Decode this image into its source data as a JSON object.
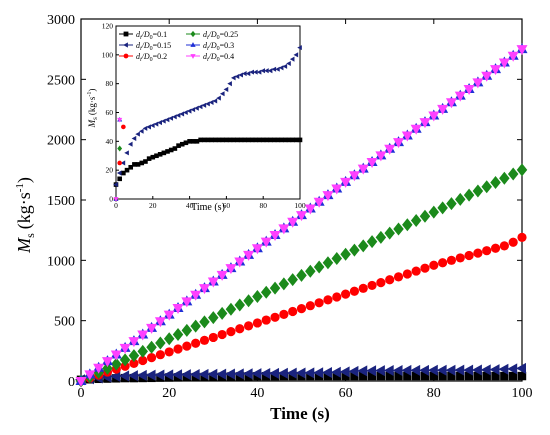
{
  "chart_data": [
    {
      "id": "main",
      "type": "scatter",
      "xlabel": "Time (s)",
      "ylabel": "M",
      "ylabel_sub": "s",
      "ylabel_unit": "(kg·s",
      "ylabel_unit_sup": "-1",
      "ylabel_unit_close": ")",
      "xlim": [
        0,
        100
      ],
      "ylim": [
        0,
        3000
      ],
      "xticks": [
        "0",
        "20",
        "40",
        "60",
        "80",
        "100"
      ],
      "yticks": [
        "0",
        "500",
        "1000",
        "1500",
        "2000",
        "2500",
        "3000"
      ],
      "grid": false,
      "x": [
        0,
        2,
        4,
        6,
        8,
        10,
        12,
        14,
        16,
        18,
        20,
        22,
        24,
        26,
        28,
        30,
        32,
        34,
        36,
        38,
        40,
        42,
        44,
        46,
        48,
        50,
        52,
        54,
        56,
        58,
        60,
        62,
        64,
        66,
        68,
        70,
        72,
        74,
        76,
        78,
        80,
        82,
        84,
        86,
        88,
        90,
        92,
        94,
        96,
        98,
        100
      ],
      "series": [
        {
          "name": "d_i/D_0=0.1",
          "color": "#000000",
          "marker": "square",
          "values": [
            10,
            14,
            18,
            20,
            22,
            24,
            24,
            25,
            26,
            28,
            29,
            30,
            31,
            32,
            33,
            34,
            35,
            37,
            38,
            39,
            40,
            40,
            40,
            41,
            41,
            41,
            41,
            41,
            41,
            41,
            41,
            41,
            41,
            41,
            41,
            41,
            41,
            41,
            41,
            41,
            41,
            41,
            41,
            41,
            41,
            41,
            41,
            41,
            41,
            41,
            41
          ]
        },
        {
          "name": "d_i/D_0=0.15",
          "color": "#1a237e",
          "marker": "triangle-left",
          "values": [
            10,
            18,
            25,
            32,
            38,
            42,
            45,
            47,
            49,
            50,
            51,
            52,
            53,
            54,
            55,
            56,
            57,
            58,
            59,
            60,
            61,
            62,
            63,
            64,
            65,
            66,
            67,
            68,
            70,
            73,
            76,
            80,
            84,
            85,
            86,
            87,
            87,
            88,
            88,
            88,
            89,
            89,
            89,
            90,
            90,
            91,
            92,
            94,
            97,
            100,
            105
          ]
        },
        {
          "name": "d_i/D_0=0.2",
          "color": "#ff0000",
          "marker": "circle",
          "values": [
            0,
            25,
            50,
            74,
            98,
            122,
            146,
            170,
            194,
            218,
            241,
            265,
            289,
            313,
            337,
            361,
            385,
            409,
            433,
            457,
            481,
            505,
            528,
            552,
            576,
            600,
            624,
            648,
            672,
            696,
            720,
            744,
            768,
            792,
            815,
            839,
            863,
            887,
            911,
            935,
            959,
            980,
            1000,
            1020,
            1040,
            1060,
            1080,
            1100,
            1120,
            1150,
            1190
          ]
        },
        {
          "name": "d_i/D_0=0.25",
          "color": "#1b8a1b",
          "marker": "diamond",
          "values": [
            0,
            35,
            70,
            105,
            140,
            175,
            210,
            245,
            280,
            315,
            350,
            385,
            420,
            455,
            490,
            525,
            560,
            595,
            630,
            665,
            700,
            735,
            770,
            805,
            840,
            875,
            910,
            945,
            980,
            1015,
            1050,
            1085,
            1120,
            1155,
            1190,
            1225,
            1260,
            1295,
            1330,
            1365,
            1400,
            1435,
            1470,
            1505,
            1540,
            1575,
            1610,
            1645,
            1680,
            1715,
            1750
          ]
        },
        {
          "name": "d_i/D_0=0.3",
          "color": "#1f2fd6",
          "marker": "triangle-up",
          "values": [
            0,
            55,
            110,
            165,
            220,
            275,
            330,
            385,
            440,
            495,
            550,
            605,
            660,
            715,
            770,
            825,
            880,
            935,
            990,
            1045,
            1100,
            1155,
            1210,
            1265,
            1320,
            1375,
            1430,
            1485,
            1540,
            1595,
            1650,
            1705,
            1760,
            1815,
            1870,
            1925,
            1980,
            2035,
            2090,
            2145,
            2200,
            2255,
            2310,
            2365,
            2420,
            2475,
            2530,
            2585,
            2640,
            2695,
            2750
          ]
        },
        {
          "name": "d_i/D_0=0.4",
          "color": "#ff40ff",
          "marker": "triangle-down",
          "values": [
            0,
            55,
            110,
            165,
            220,
            275,
            330,
            385,
            440,
            495,
            550,
            605,
            660,
            715,
            770,
            825,
            880,
            935,
            990,
            1045,
            1100,
            1155,
            1210,
            1265,
            1320,
            1375,
            1430,
            1485,
            1540,
            1595,
            1650,
            1705,
            1760,
            1815,
            1870,
            1925,
            1980,
            2035,
            2090,
            2145,
            2200,
            2255,
            2310,
            2365,
            2420,
            2475,
            2530,
            2585,
            2640,
            2695,
            2750
          ]
        }
      ]
    },
    {
      "id": "inset",
      "type": "scatter",
      "xlabel": "Time (s)",
      "ylabel": "M",
      "ylabel_sub": "s",
      "ylabel_unit": "(kg·s",
      "ylabel_unit_sup": "-1",
      "ylabel_unit_close": ")",
      "xlim": [
        0,
        100
      ],
      "ylim": [
        0,
        120
      ],
      "xticks": [
        "0",
        "20",
        "40",
        "60",
        "80",
        "100"
      ],
      "yticks": [
        "0",
        "20",
        "40",
        "60",
        "80",
        "100",
        "120"
      ],
      "grid": false,
      "legend_position": "top",
      "legend": [
        {
          "pre": "d",
          "sub1": "i",
          "mid": "/D",
          "sub2": "0",
          "post": "=0.1"
        },
        {
          "pre": "d",
          "sub1": "i",
          "mid": "/D",
          "sub2": "0",
          "post": "=0.25"
        },
        {
          "pre": "d",
          "sub1": "i",
          "mid": "/D",
          "sub2": "0",
          "post": "=0.15"
        },
        {
          "pre": "d",
          "sub1": "i",
          "mid": "/D",
          "sub2": "0",
          "post": "=0.3"
        },
        {
          "pre": "d",
          "sub1": "i",
          "mid": "/D",
          "sub2": "0",
          "post": "=0.2"
        },
        {
          "pre": "d",
          "sub1": "i",
          "mid": "/D",
          "sub2": "0",
          "post": "=0.4"
        }
      ],
      "series_x": [
        [
          0,
          2,
          4,
          6,
          8,
          10,
          12,
          14,
          16,
          18,
          20,
          22,
          24,
          26,
          28,
          30,
          32,
          34,
          36,
          38,
          40,
          42,
          44,
          46,
          48,
          50,
          52,
          54,
          56,
          58,
          60,
          62,
          64,
          66,
          68,
          70,
          72,
          74,
          76,
          78,
          80,
          82,
          84,
          86,
          88,
          90,
          92,
          94,
          96,
          98,
          100
        ],
        [
          0,
          2,
          4,
          6,
          8,
          10,
          12,
          14,
          16,
          18,
          20,
          22,
          24,
          26,
          28,
          30,
          32,
          34,
          36,
          38,
          40,
          42,
          44,
          46,
          48,
          50,
          52,
          54,
          56,
          58,
          60,
          62,
          64,
          66,
          68,
          70,
          72,
          74,
          76,
          78,
          80,
          82,
          84,
          86,
          88,
          90,
          92,
          94,
          96,
          98,
          100
        ],
        [
          0,
          2,
          4
        ],
        [
          0,
          2
        ],
        [
          0,
          2
        ],
        [
          0,
          2
        ]
      ]
    }
  ]
}
